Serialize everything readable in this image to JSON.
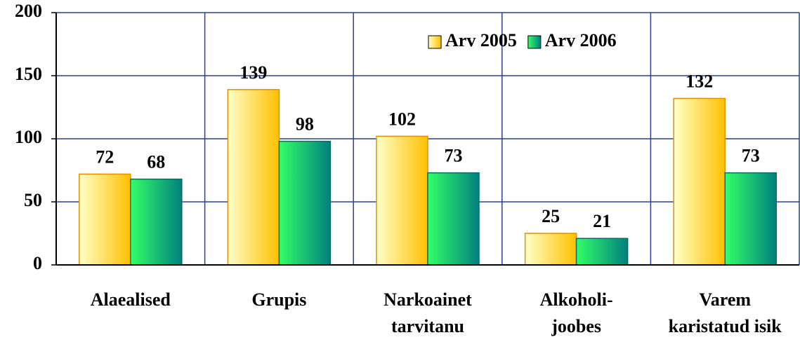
{
  "chart_data": {
    "type": "bar",
    "categories": [
      "Alaealised",
      "Grupis",
      "Narkoainet\ntarvitanu",
      "Alkoholi-\njoobes",
      "Varem\nkaristatud isik"
    ],
    "series": [
      {
        "name": "Arv 2005",
        "color": [
          "#ffffc8",
          "#ffc000"
        ],
        "values": [
          72,
          139,
          102,
          25,
          132
        ]
      },
      {
        "name": "Arv 2006",
        "color": [
          "#33ff66",
          "#008080"
        ],
        "values": [
          68,
          98,
          73,
          21,
          73
        ]
      }
    ],
    "ylim": [
      0,
      200
    ],
    "yticks": [
      0,
      50,
      100,
      150,
      200
    ],
    "grid": true,
    "legend": "top-right"
  }
}
